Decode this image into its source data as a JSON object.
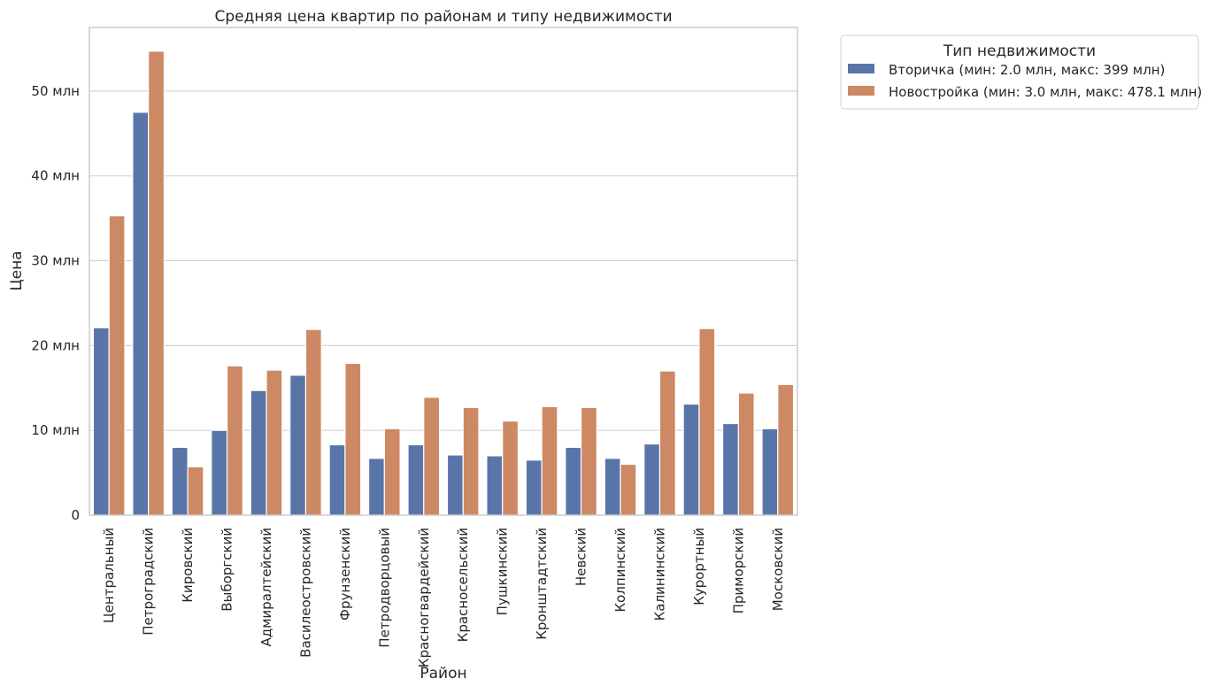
{
  "chart_data": {
    "type": "bar",
    "title": "Средняя цена квартир по районам и типу недвижимости",
    "xlabel": "Район",
    "ylabel": "Цена",
    "ylim": [
      0,
      57.5
    ],
    "yticks": [
      0,
      10,
      20,
      30,
      40,
      50
    ],
    "ytick_labels": [
      "0",
      "10 млн",
      "20 млн",
      "30 млн",
      "40 млн",
      "50 млн"
    ],
    "grid": "horizontal",
    "legend": {
      "title": "Тип недвижимости",
      "placement": "outside-top-right"
    },
    "categories": [
      "Центральный",
      "Петроградский",
      "Кировский",
      "Выборгский",
      "Адмиралтейский",
      "Василеостровский",
      "Фрунзенский",
      "Петродворцовый",
      "Красногвардейский",
      "Красносельский",
      "Пушкинский",
      "Кронштадтский",
      "Невский",
      "Колпинский",
      "Калининский",
      "Курортный",
      "Приморский",
      "Московский"
    ],
    "series": [
      {
        "name": "Вторичка (мин: 2.0 млн, макс: 399 млн)",
        "color": "#5975a8",
        "values": [
          22.1,
          47.5,
          8.0,
          10.0,
          14.7,
          16.5,
          8.3,
          6.7,
          8.3,
          7.1,
          7.0,
          6.5,
          8.0,
          6.7,
          8.4,
          13.1,
          10.8,
          10.2
        ]
      },
      {
        "name": "Новостройка (мин: 3.0 млн, макс: 478.1 млн)",
        "color": "#cc8963",
        "values": [
          35.3,
          54.7,
          5.7,
          17.6,
          17.1,
          21.9,
          17.9,
          10.2,
          13.9,
          12.7,
          11.1,
          12.8,
          12.7,
          6.0,
          17.0,
          22.0,
          14.4,
          15.4
        ]
      }
    ]
  }
}
